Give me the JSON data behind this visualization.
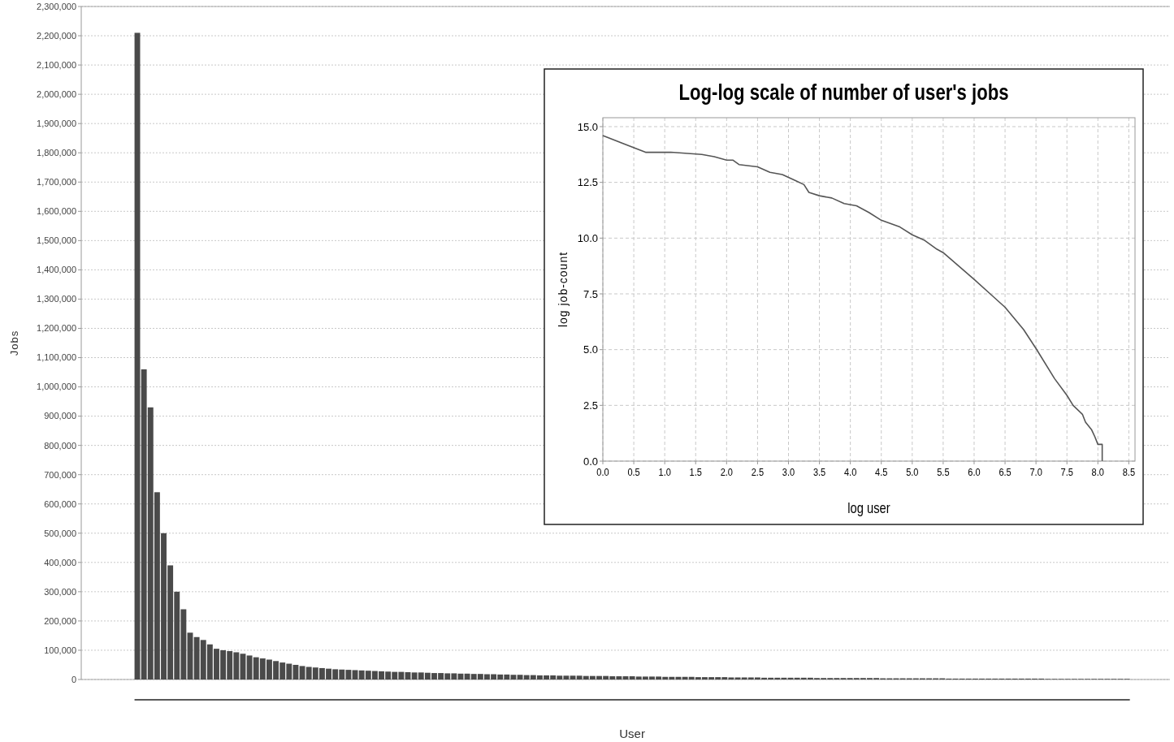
{
  "chart_data": [
    {
      "type": "bar",
      "xlabel": "User",
      "ylabel": "Jobs",
      "color": "#4a4a4a",
      "grid": "y",
      "categories": [
        null,
        null,
        null,
        null,
        null,
        null,
        null,
        null,
        null,
        null,
        null,
        null,
        null,
        null,
        null,
        null,
        null,
        null,
        null,
        null,
        null,
        null,
        null,
        null,
        null,
        null,
        null,
        null,
        null,
        null,
        null,
        null,
        null,
        null,
        null,
        null,
        null,
        null,
        null,
        null,
        null,
        null,
        null,
        null,
        null,
        null,
        null,
        null,
        null,
        null,
        null,
        null,
        null,
        null,
        null,
        null,
        null,
        null,
        null,
        null,
        null,
        null,
        null,
        null,
        null,
        null,
        null,
        null,
        null,
        null,
        null,
        null,
        null,
        null,
        null,
        null,
        null,
        null,
        null,
        null,
        null,
        null,
        null,
        null,
        null,
        null,
        null,
        null,
        null,
        null,
        null,
        null,
        null,
        null,
        null,
        null,
        null,
        null,
        null,
        null,
        null,
        null,
        null,
        null,
        null,
        null,
        null,
        null,
        null,
        null,
        null,
        null,
        null,
        null,
        null,
        null,
        null,
        null,
        null,
        null,
        null,
        null,
        null,
        null,
        null,
        null,
        null,
        null,
        null,
        null,
        null,
        null,
        null,
        null,
        null,
        null,
        null,
        null,
        null,
        null,
        null,
        null,
        null,
        null,
        null,
        null,
        null,
        null,
        null,
        null,
        null,
        null,
        null,
        null,
        null,
        null,
        null,
        null,
        null,
        null,
        null,
        null,
        null,
        null,
        null
      ],
      "values": [
        null,
        null,
        null,
        null,
        null,
        null,
        null,
        null,
        2210000,
        1060000,
        930000,
        640000,
        500000,
        390000,
        300000,
        240000,
        160000,
        145000,
        135000,
        120000,
        105000,
        100000,
        97000,
        93000,
        88000,
        82000,
        76000,
        72000,
        68000,
        63000,
        58000,
        54000,
        50000,
        46000,
        43000,
        41000,
        39000,
        37000,
        35000,
        34000,
        33000,
        32000,
        31000,
        30000,
        29000,
        28000,
        27000,
        26000,
        26000,
        25000,
        24000,
        24000,
        23000,
        22000,
        22000,
        21000,
        21000,
        20000,
        20000,
        19000,
        19000,
        18000,
        18000,
        17000,
        17000,
        16000,
        16000,
        15000,
        15000,
        14000,
        14000,
        14000,
        13000,
        13000,
        13000,
        13000,
        12000,
        12000,
        12000,
        12000,
        11000,
        11000,
        11000,
        11000,
        10000,
        10000,
        10000,
        10000,
        9000,
        9000,
        9000,
        9000,
        9000,
        8000,
        8000,
        8000,
        8000,
        8000,
        7000,
        7000,
        7000,
        7000,
        7000,
        6000,
        6000,
        6000,
        6000,
        6000,
        6000,
        6000,
        6000,
        5000,
        5000,
        5000,
        5000,
        5000,
        5000,
        5000,
        5000,
        5000,
        5000,
        4000,
        4000,
        4000,
        4000,
        4000,
        4000,
        4000,
        4000,
        4000,
        4000,
        3000,
        3000,
        3000,
        3000,
        3000,
        3000,
        3000,
        3000,
        3000,
        3000,
        3000,
        3000,
        3000,
        3000,
        3000,
        2000,
        2000,
        2000,
        2000,
        2000,
        2000,
        2000,
        2000,
        2000,
        2000,
        2000,
        2000,
        2000,
        null,
        null,
        null,
        null,
        null,
        null
      ],
      "ylim": [
        0,
        2300000
      ],
      "yticks": [
        {
          "value": 0,
          "label": "0"
        },
        {
          "value": 100000,
          "label": "100,000"
        },
        {
          "value": 200000,
          "label": "200,000"
        },
        {
          "value": 300000,
          "label": "300,000"
        },
        {
          "value": 400000,
          "label": "400,000"
        },
        {
          "value": 500000,
          "label": "500,000"
        },
        {
          "value": 600000,
          "label": "600,000"
        },
        {
          "value": 700000,
          "label": "700,000"
        },
        {
          "value": 800000,
          "label": "800,000"
        },
        {
          "value": 900000,
          "label": "900,000"
        },
        {
          "value": 1000000,
          "label": "1,000,000"
        },
        {
          "value": 1100000,
          "label": "1,100,000"
        },
        {
          "value": 1200000,
          "label": "1,200,000"
        },
        {
          "value": 1300000,
          "label": "1,300,000"
        },
        {
          "value": 1400000,
          "label": "1,400,000"
        },
        {
          "value": 1500000,
          "label": "1,500,000"
        },
        {
          "value": 1600000,
          "label": "1,600,000"
        },
        {
          "value": 1700000,
          "label": "1,700,000"
        },
        {
          "value": 1800000,
          "label": "1,800,000"
        },
        {
          "value": 1900000,
          "label": "1,900,000"
        },
        {
          "value": 2000000,
          "label": "2,000,000"
        },
        {
          "value": 2100000,
          "label": "2,100,000"
        },
        {
          "value": 2200000,
          "label": "2,200,000"
        },
        {
          "value": 2300000,
          "label": "2,300,000"
        }
      ]
    },
    {
      "type": "line",
      "title": "Log-log scale of number of user's jobs",
      "xlabel": "log user",
      "ylabel": "log job-count",
      "grid": true,
      "line_style": "solid",
      "series": [
        {
          "color": "#555555",
          "x": [
            0,
            0.69,
            1.1,
            1.6,
            1.8,
            2.0,
            2.1,
            2.2,
            2.5,
            2.7,
            2.9,
            3.1,
            3.25,
            3.33,
            3.5,
            3.7,
            3.9,
            4.1,
            4.3,
            4.5,
            4.8,
            5.0,
            5.2,
            5.4,
            5.5,
            6.0,
            6.3,
            6.5,
            6.8,
            7.0,
            7.3,
            7.5,
            7.6,
            7.75,
            7.8,
            7.9,
            7.95,
            8.0,
            8.07,
            8.07
          ],
          "values": [
            14.6,
            13.85,
            13.85,
            13.75,
            13.65,
            13.5,
            13.5,
            13.3,
            13.2,
            12.95,
            12.85,
            12.6,
            12.4,
            12.05,
            11.9,
            11.8,
            11.55,
            11.45,
            11.15,
            10.8,
            10.5,
            10.15,
            9.9,
            9.5,
            9.35,
            8.15,
            7.4,
            6.9,
            5.9,
            5.05,
            3.7,
            2.95,
            2.5,
            2.1,
            1.75,
            1.4,
            1.1,
            0.75,
            0.75,
            0
          ]
        }
      ],
      "xlim": [
        0,
        8.6
      ],
      "ylim": [
        0,
        15.4
      ],
      "xticks": [
        {
          "value": 0,
          "label": "0.0"
        },
        {
          "value": 0.5,
          "label": "0.5"
        },
        {
          "value": 1,
          "label": "1.0"
        },
        {
          "value": 1.5,
          "label": "1.5"
        },
        {
          "value": 2,
          "label": "2.0"
        },
        {
          "value": 2.5,
          "label": "2.5"
        },
        {
          "value": 3,
          "label": "3.0"
        },
        {
          "value": 3.5,
          "label": "3.5"
        },
        {
          "value": 4,
          "label": "4.0"
        },
        {
          "value": 4.5,
          "label": "4.5"
        },
        {
          "value": 5,
          "label": "5.0"
        },
        {
          "value": 5.5,
          "label": "5.5"
        },
        {
          "value": 6,
          "label": "6.0"
        },
        {
          "value": 6.5,
          "label": "6.5"
        },
        {
          "value": 7,
          "label": "7.0"
        },
        {
          "value": 7.5,
          "label": "7.5"
        },
        {
          "value": 8,
          "label": "8.0"
        },
        {
          "value": 8.5,
          "label": "8.5"
        }
      ],
      "yticks": [
        {
          "value": 0,
          "label": "0.0"
        },
        {
          "value": 2.5,
          "label": "2.5"
        },
        {
          "value": 5,
          "label": "5.0"
        },
        {
          "value": 7.5,
          "label": "7.5"
        },
        {
          "value": 10,
          "label": "10.0"
        },
        {
          "value": 12.5,
          "label": "12.5"
        },
        {
          "value": 15,
          "label": "15.0"
        }
      ]
    }
  ]
}
